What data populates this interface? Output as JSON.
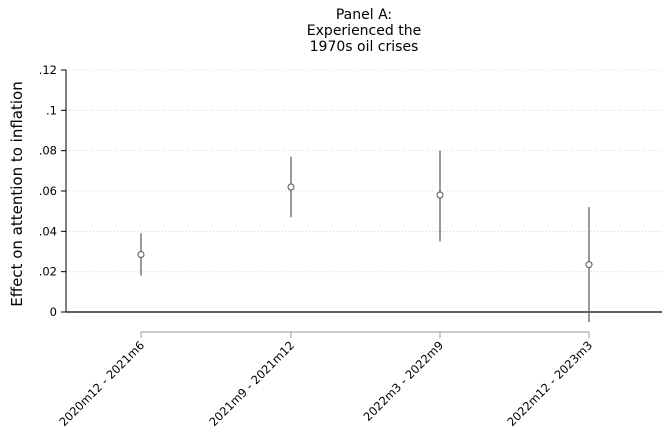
{
  "chart_data": {
    "type": "scatter",
    "title_lines": [
      "Panel A:",
      "Experienced the",
      "1970s oil crises"
    ],
    "xlabel": "",
    "ylabel": "Effect on attention to inflation",
    "ylim": [
      0,
      0.12
    ],
    "yticks": [
      {
        "value": 0,
        "label": "0"
      },
      {
        "value": 0.02,
        "label": ".02"
      },
      {
        "value": 0.04,
        "label": ".04"
      },
      {
        "value": 0.06,
        "label": ".06"
      },
      {
        "value": 0.08,
        "label": ".08"
      },
      {
        "value": 0.1,
        "label": ".1"
      },
      {
        "value": 0.12,
        "label": ".12"
      }
    ],
    "grid": true,
    "categories": [
      "2020m12 - 2021m6",
      "2021m9 - 2021m12",
      "2022m3 - 2022m9",
      "2022m12 - 2023m3"
    ],
    "points": [
      {
        "category": "2020m12 - 2021m6",
        "estimate": 0.0285,
        "ci_low": 0.018,
        "ci_high": 0.039
      },
      {
        "category": "2021m9 - 2021m12",
        "estimate": 0.062,
        "ci_low": 0.047,
        "ci_high": 0.077
      },
      {
        "category": "2022m3 - 2022m9",
        "estimate": 0.058,
        "ci_low": 0.035,
        "ci_high": 0.08
      },
      {
        "category": "2022m12 - 2023m3",
        "estimate": 0.0235,
        "ci_low": -0.005,
        "ci_high": 0.052
      }
    ],
    "colors": {
      "marker": "#555555",
      "ci": "#555555",
      "grid": "#cccccc",
      "axis": "#000000"
    }
  }
}
